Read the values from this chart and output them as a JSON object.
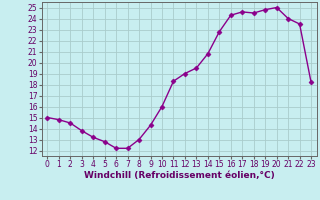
{
  "x": [
    0,
    1,
    2,
    3,
    4,
    5,
    6,
    7,
    8,
    9,
    10,
    11,
    12,
    13,
    14,
    15,
    16,
    17,
    18,
    19,
    20,
    21,
    22,
    23
  ],
  "y": [
    15.0,
    14.8,
    14.5,
    13.8,
    13.2,
    12.8,
    12.2,
    12.2,
    13.0,
    14.3,
    16.0,
    18.3,
    19.0,
    19.5,
    20.8,
    22.8,
    24.3,
    24.6,
    24.5,
    24.8,
    25.0,
    24.0,
    23.5,
    18.2
  ],
  "line_color": "#8b008b",
  "marker": "D",
  "marker_size": 2.5,
  "linewidth": 1.0,
  "bg_color": "#c8eef0",
  "grid_color": "#b0dde0",
  "xlabel": "Windchill (Refroidissement éolien,°C)",
  "ylim": [
    11.5,
    25.5
  ],
  "xlim": [
    -0.5,
    23.5
  ],
  "yticks": [
    12,
    13,
    14,
    15,
    16,
    17,
    18,
    19,
    20,
    21,
    22,
    23,
    24,
    25
  ],
  "xticks": [
    0,
    1,
    2,
    3,
    4,
    5,
    6,
    7,
    8,
    9,
    10,
    11,
    12,
    13,
    14,
    15,
    16,
    17,
    18,
    19,
    20,
    21,
    22,
    23
  ],
  "tick_fontsize": 5.5,
  "xlabel_fontsize": 6.5
}
